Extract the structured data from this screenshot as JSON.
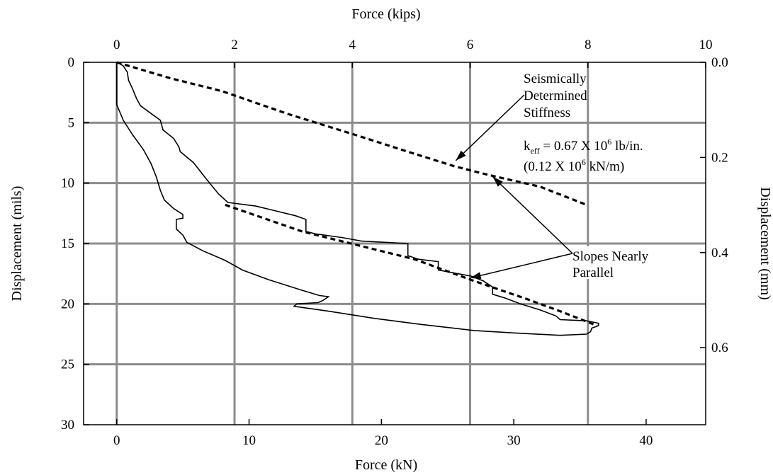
{
  "chart_data": {
    "type": "line",
    "x_bottom": {
      "label": "Force (kN)",
      "lim": [
        -2.5,
        44.5
      ],
      "ticks": [
        0,
        10,
        20,
        30,
        40
      ]
    },
    "x_top": {
      "label": "Force (kips)",
      "lim": [
        -0.5625,
        10.0
      ],
      "ticks": [
        0,
        2,
        4,
        6,
        8,
        10
      ]
    },
    "y_left": {
      "label": "Displacement (mils)",
      "lim": [
        0,
        30
      ],
      "inverted": true,
      "ticks": [
        0,
        5,
        10,
        15,
        20,
        25,
        30
      ]
    },
    "y_right": {
      "label": "Displacement (mm)",
      "ticks": [
        0.0,
        0.2,
        0.4,
        0.6
      ],
      "tick_labels": [
        "0.0",
        "0.2",
        "0.4",
        "0.6"
      ],
      "mils_per_unit": 39.37
    },
    "grid": true,
    "series": [
      {
        "style": "solid",
        "x_unit": "kN",
        "y_unit": "mils",
        "points": [
          [
            0.0,
            0.0
          ],
          [
            0.0,
            3.5
          ],
          [
            0.5,
            4.8
          ],
          [
            1.2,
            6.0
          ],
          [
            2.0,
            7.2
          ],
          [
            2.6,
            8.4
          ],
          [
            3.0,
            9.5
          ],
          [
            3.3,
            10.6
          ],
          [
            3.6,
            11.4
          ],
          [
            4.3,
            12.1
          ],
          [
            5.0,
            12.6
          ],
          [
            5.0,
            12.9
          ],
          [
            4.5,
            13.0
          ],
          [
            4.5,
            13.8
          ],
          [
            5.0,
            14.3
          ],
          [
            5.3,
            14.9
          ],
          [
            6.5,
            15.6
          ],
          [
            8.2,
            16.4
          ],
          [
            9.5,
            17.2
          ],
          [
            11.5,
            18.0
          ],
          [
            13.8,
            18.8
          ],
          [
            15.3,
            19.3
          ],
          [
            16.0,
            19.4
          ],
          [
            15.6,
            19.7
          ],
          [
            15.2,
            19.9
          ],
          [
            13.6,
            20.0
          ],
          [
            13.4,
            20.2
          ],
          [
            16.0,
            20.6
          ],
          [
            19.5,
            21.2
          ],
          [
            23.0,
            21.7
          ],
          [
            27.0,
            22.2
          ],
          [
            30.0,
            22.4
          ],
          [
            33.5,
            22.6
          ],
          [
            35.5,
            22.5
          ],
          [
            35.8,
            22.3
          ],
          [
            35.9,
            22.0
          ],
          [
            36.4,
            21.8
          ],
          [
            36.4,
            21.6
          ],
          [
            35.5,
            21.4
          ],
          [
            33.5,
            21.3
          ],
          [
            33.2,
            21.0
          ],
          [
            32.0,
            20.5
          ],
          [
            30.5,
            20.0
          ],
          [
            29.3,
            19.5
          ],
          [
            28.4,
            19.2
          ],
          [
            28.4,
            18.6
          ],
          [
            27.7,
            18.1
          ],
          [
            26.8,
            17.7
          ],
          [
            25.8,
            17.5
          ],
          [
            24.3,
            17.2
          ],
          [
            24.3,
            16.5
          ],
          [
            22.8,
            16.3
          ],
          [
            22.0,
            16.0
          ],
          [
            22.0,
            15.0
          ],
          [
            18.5,
            14.8
          ],
          [
            17.0,
            14.5
          ],
          [
            15.0,
            14.2
          ],
          [
            14.3,
            14.0
          ],
          [
            14.3,
            13.0
          ],
          [
            13.5,
            12.7
          ],
          [
            12.0,
            12.3
          ],
          [
            10.5,
            11.9
          ],
          [
            8.4,
            11.6
          ],
          [
            7.7,
            10.9
          ],
          [
            6.8,
            9.7
          ],
          [
            5.8,
            8.3
          ],
          [
            4.8,
            7.4
          ],
          [
            4.7,
            7.0
          ],
          [
            4.3,
            6.3
          ],
          [
            3.5,
            5.6
          ],
          [
            3.3,
            4.8
          ],
          [
            2.3,
            4.0
          ],
          [
            1.8,
            3.6
          ],
          [
            1.5,
            3.0
          ],
          [
            1.2,
            2.2
          ],
          [
            0.9,
            1.5
          ],
          [
            0.8,
            0.8
          ],
          [
            0.5,
            0.3
          ],
          [
            0.2,
            0.1
          ],
          [
            0.0,
            0.0
          ]
        ]
      },
      {
        "style": "dashed",
        "x_unit": "kN",
        "y_unit": "mils",
        "points": [
          [
            0.0,
            0.0
          ],
          [
            4.0,
            1.3
          ],
          [
            8.0,
            2.4
          ],
          [
            13.0,
            4.3
          ],
          [
            18.0,
            6.0
          ],
          [
            22.0,
            7.4
          ],
          [
            25.5,
            8.6
          ],
          [
            28.0,
            9.3
          ],
          [
            32.0,
            10.3
          ],
          [
            35.5,
            11.8
          ]
        ]
      },
      {
        "style": "dashed",
        "x_unit": "kN",
        "y_unit": "mils",
        "points": [
          [
            8.2,
            11.8
          ],
          [
            14.0,
            14.0
          ],
          [
            22.5,
            16.3
          ],
          [
            27.0,
            18.1
          ],
          [
            31.0,
            19.6
          ],
          [
            33.5,
            20.6
          ],
          [
            36.3,
            21.8
          ]
        ]
      }
    ],
    "annotations": [
      {
        "lines": [
          "Seismically",
          "Determined",
          "Stiffness"
        ],
        "pointer_kN_mils": [
          25.3,
          8.6
        ]
      },
      {
        "k_prefix": "k",
        "k_subscript": "eff",
        "k_mid": " = 0.67 X 10",
        "k_sup": "6",
        "k_suffix": " lb/in.",
        "si_prefix": "(0.12 X 10",
        "si_sup": "6",
        "si_suffix": " kN/m)"
      },
      {
        "lines": [
          "Slopes Nearly",
          "Parallel"
        ],
        "pointers_kN_mils": [
          [
            28.2,
            9.3
          ],
          [
            26.6,
            17.8
          ]
        ]
      }
    ]
  }
}
